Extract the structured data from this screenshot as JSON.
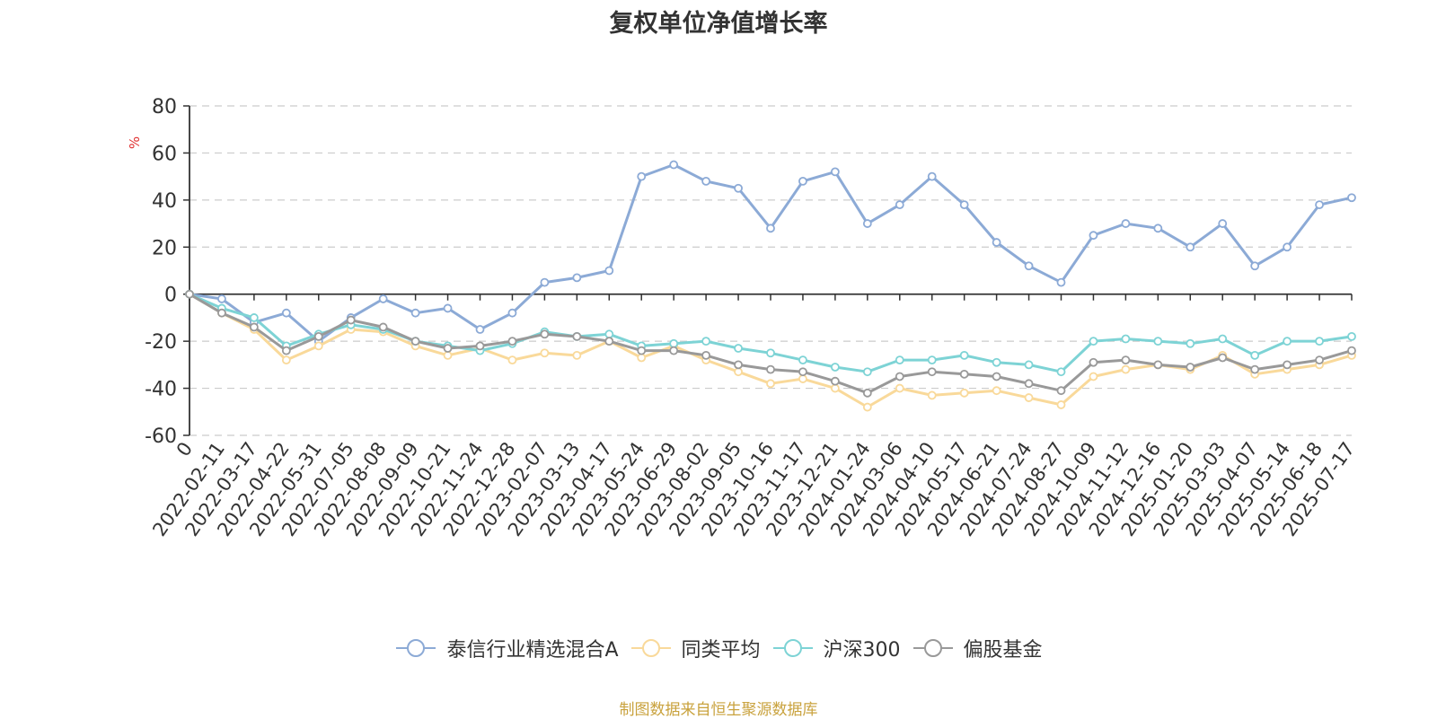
{
  "chart_data": {
    "type": "line",
    "title": "复权单位净值增长率",
    "ylabel": "%",
    "ylim": [
      -60,
      80
    ],
    "yticks": [
      80,
      60,
      40,
      20,
      0,
      -20,
      -40,
      -60
    ],
    "grid": true,
    "legend_position": "bottom",
    "x_labels": [
      "0",
      "2022-02-11",
      "2022-03-17",
      "2022-04-22",
      "2022-05-31",
      "2022-07-05",
      "2022-08-08",
      "2022-09-09",
      "2022-10-21",
      "2022-11-24",
      "2022-12-28",
      "2023-02-07",
      "2023-03-13",
      "2023-04-17",
      "2023-05-24",
      "2023-06-29",
      "2023-08-02",
      "2023-09-05",
      "2023-10-16",
      "2023-11-17",
      "2023-12-21",
      "2024-01-24",
      "2024-03-06",
      "2024-04-10",
      "2024-05-17",
      "2024-06-21",
      "2024-07-24",
      "2024-08-27",
      "2024-10-09",
      "2024-11-12",
      "2024-12-16",
      "2025-01-20",
      "2025-03-03",
      "2025-04-07",
      "2025-05-14",
      "2025-06-18",
      "2025-07-17"
    ],
    "series": [
      {
        "name": "泰信行业精选混合A",
        "color": "#8caad6",
        "values": [
          0,
          -2,
          -12,
          -8,
          -20,
          -10,
          -2,
          -8,
          -6,
          -15,
          -8,
          5,
          7,
          10,
          50,
          55,
          48,
          45,
          28,
          48,
          52,
          30,
          38,
          50,
          38,
          22,
          12,
          5,
          25,
          30,
          28,
          20,
          30,
          12,
          20,
          38,
          41
        ]
      },
      {
        "name": "同类平均",
        "color": "#f9d99a",
        "values": [
          0,
          -8,
          -15,
          -28,
          -22,
          -15,
          -16,
          -22,
          -26,
          -23,
          -28,
          -25,
          -26,
          -20,
          -27,
          -22,
          -28,
          -33,
          -38,
          -36,
          -40,
          -48,
          -40,
          -43,
          -42,
          -41,
          -44,
          -47,
          -35,
          -32,
          -30,
          -32,
          -26,
          -34,
          -32,
          -30,
          -26
        ]
      },
      {
        "name": "沪深300",
        "color": "#7dd3d5",
        "values": [
          0,
          -6,
          -10,
          -22,
          -17,
          -13,
          -15,
          -20,
          -22,
          -24,
          -21,
          -16,
          -18,
          -17,
          -22,
          -21,
          -20,
          -23,
          -25,
          -28,
          -31,
          -33,
          -28,
          -28,
          -26,
          -29,
          -30,
          -33,
          -20,
          -19,
          -20,
          -21,
          -19,
          -26,
          -20,
          -20,
          -18
        ]
      },
      {
        "name": "偏股基金",
        "color": "#999999",
        "values": [
          0,
          -8,
          -14,
          -24,
          -18,
          -11,
          -14,
          -20,
          -23,
          -22,
          -20,
          -17,
          -18,
          -20,
          -24,
          -24,
          -26,
          -30,
          -32,
          -33,
          -37,
          -42,
          -35,
          -33,
          -34,
          -35,
          -38,
          -41,
          -29,
          -28,
          -30,
          -31,
          -27,
          -32,
          -30,
          -28,
          -24
        ]
      }
    ]
  },
  "legend": {
    "items": [
      {
        "label": "泰信行业精选混合A",
        "color": "#8caad6"
      },
      {
        "label": "同类平均",
        "color": "#f9d99a"
      },
      {
        "label": "沪深300",
        "color": "#7dd3d5"
      },
      {
        "label": "偏股基金",
        "color": "#999999"
      }
    ]
  },
  "source_note": "制图数据来自恒生聚源数据库"
}
